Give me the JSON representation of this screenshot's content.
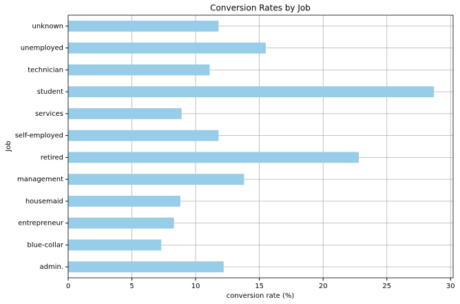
{
  "chart_data": {
    "type": "barh",
    "title": "Conversion Rates by Job",
    "xlabel": "conversion rate (%)",
    "ylabel": "Job",
    "categories": [
      "admin.",
      "blue-collar",
      "entrepreneur",
      "housemaid",
      "management",
      "retired",
      "self-employed",
      "services",
      "student",
      "technician",
      "unemployed",
      "unknown"
    ],
    "values": [
      12.2,
      7.3,
      8.3,
      8.8,
      13.8,
      22.8,
      11.8,
      8.9,
      28.7,
      11.1,
      15.5,
      11.8
    ],
    "color": "#97cde8",
    "xlim": [
      0,
      30.2
    ],
    "xticks": [
      0,
      5,
      10,
      15,
      20,
      25,
      30
    ],
    "grid": true
  }
}
